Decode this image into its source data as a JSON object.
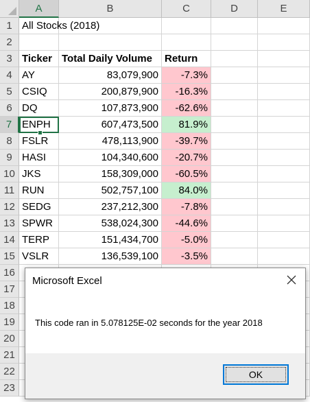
{
  "columns": [
    "A",
    "B",
    "C",
    "D",
    "E"
  ],
  "rows": [
    "1",
    "2",
    "3",
    "4",
    "5",
    "6",
    "7",
    "8",
    "9",
    "10",
    "11",
    "12",
    "13",
    "14",
    "15",
    "16",
    "17",
    "18",
    "19",
    "20",
    "21",
    "22",
    "23"
  ],
  "sheet": {
    "title": "All Stocks (2018)",
    "headers": {
      "ticker": "Ticker",
      "volume": "Total Daily Volume",
      "return": "Return"
    },
    "data": [
      {
        "ticker": "AY",
        "volume": "83,079,900",
        "return": "-7.3%",
        "status": "negative"
      },
      {
        "ticker": "CSIQ",
        "volume": "200,879,900",
        "return": "-16.3%",
        "status": "negative"
      },
      {
        "ticker": "DQ",
        "volume": "107,873,900",
        "return": "-62.6%",
        "status": "negative"
      },
      {
        "ticker": "ENPH",
        "volume": "607,473,500",
        "return": "81.9%",
        "status": "positive"
      },
      {
        "ticker": "FSLR",
        "volume": "478,113,900",
        "return": "-39.7%",
        "status": "negative"
      },
      {
        "ticker": "HASI",
        "volume": "104,340,600",
        "return": "-20.7%",
        "status": "negative"
      },
      {
        "ticker": "JKS",
        "volume": "158,309,000",
        "return": "-60.5%",
        "status": "negative"
      },
      {
        "ticker": "RUN",
        "volume": "502,757,100",
        "return": "84.0%",
        "status": "positive"
      },
      {
        "ticker": "SEDG",
        "volume": "237,212,300",
        "return": "-7.8%",
        "status": "negative"
      },
      {
        "ticker": "SPWR",
        "volume": "538,024,300",
        "return": "-44.6%",
        "status": "negative"
      },
      {
        "ticker": "TERP",
        "volume": "151,434,700",
        "return": "-5.0%",
        "status": "negative"
      },
      {
        "ticker": "VSLR",
        "volume": "136,539,100",
        "return": "-3.5%",
        "status": "negative"
      }
    ],
    "active_cell": "A7"
  },
  "colors": {
    "negative": "#ffc7ce",
    "positive": "#c6efce",
    "accent": "#217346"
  },
  "dialog": {
    "title": "Microsoft Excel",
    "close_icon": "close-icon",
    "message": "This code ran in 5.078125E-02 seconds for the year 2018",
    "ok_label": "OK"
  }
}
